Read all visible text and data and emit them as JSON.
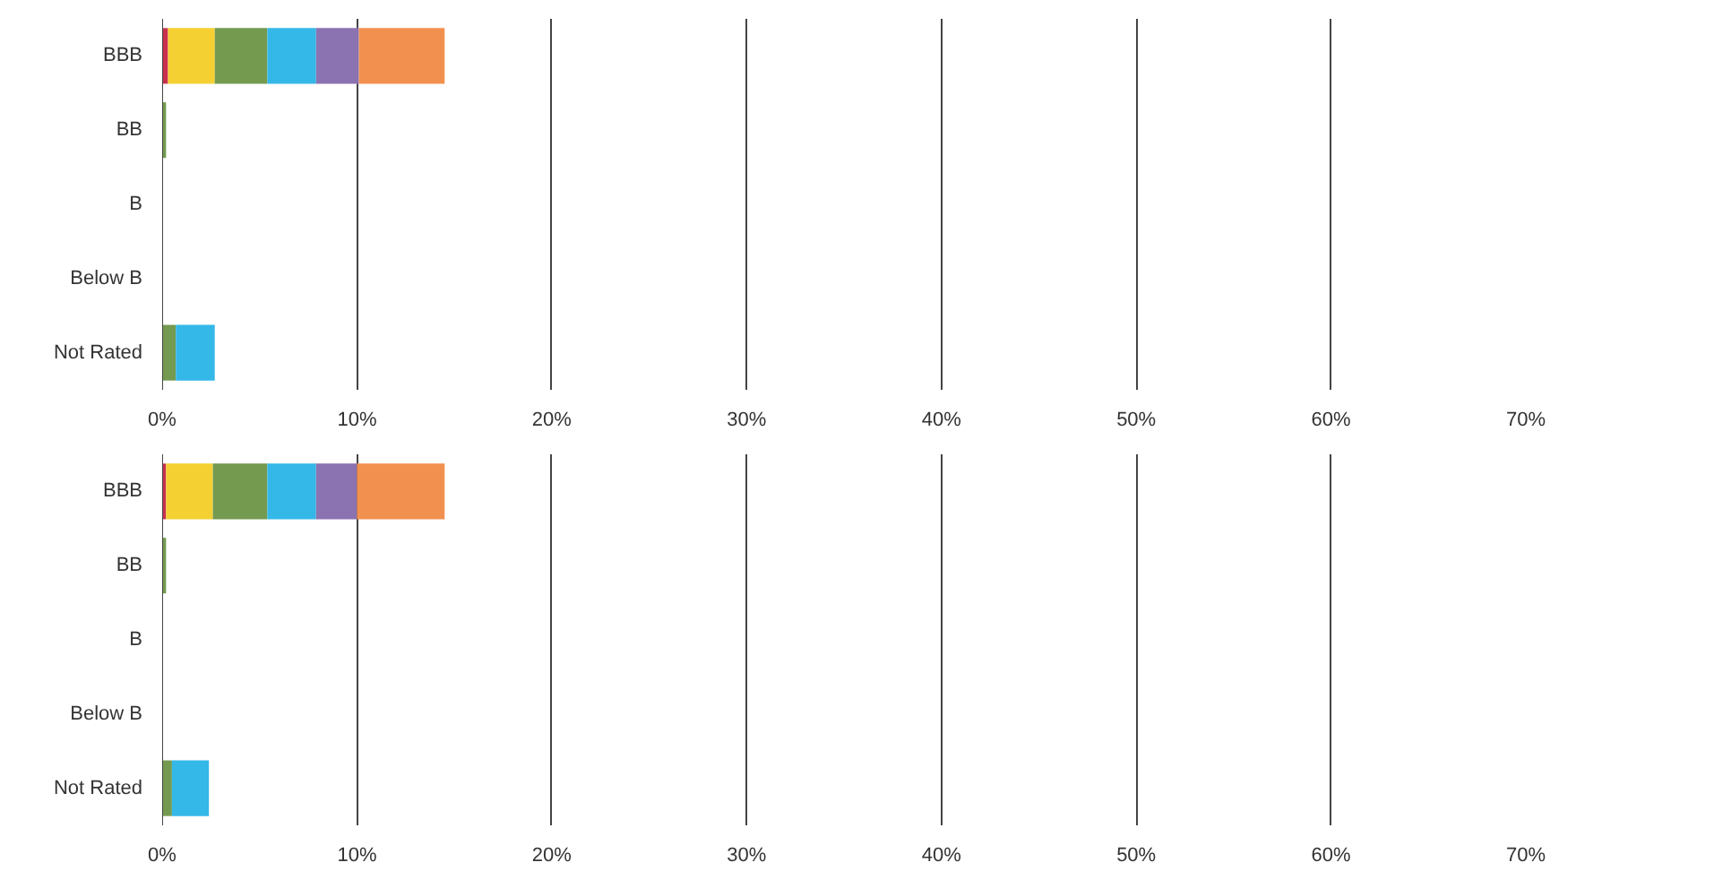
{
  "chart_data": [
    {
      "type": "bar",
      "orientation": "horizontal",
      "stacked": true,
      "categories": [
        "BBB",
        "BB",
        "B",
        "Below B",
        "Not Rated"
      ],
      "xlim": [
        0,
        70
      ],
      "xticks": [
        {
          "value": 0,
          "label": "0%"
        },
        {
          "value": 10,
          "label": "10%"
        },
        {
          "value": 20,
          "label": "20%"
        },
        {
          "value": 30,
          "label": "30%"
        },
        {
          "value": 40,
          "label": "40%"
        },
        {
          "value": 50,
          "label": "50%"
        },
        {
          "value": 60,
          "label": "60%"
        },
        {
          "value": 70,
          "label": "70%"
        }
      ],
      "grid": "x",
      "series": [
        {
          "color": "#c8304e",
          "values": [
            0.3,
            0,
            0,
            0,
            0
          ]
        },
        {
          "color": "#f5d033",
          "values": [
            2.4,
            0,
            0,
            0,
            0
          ]
        },
        {
          "color": "#749a50",
          "values": [
            2.7,
            0.2,
            0,
            0,
            0.7
          ]
        },
        {
          "color": "#34b8e8",
          "values": [
            2.5,
            0,
            0,
            0,
            2.0
          ]
        },
        {
          "color": "#8b72b0",
          "values": [
            2.2,
            0,
            0,
            0,
            0
          ]
        },
        {
          "color": "#f2914f",
          "values": [
            4.4,
            0,
            0,
            0,
            0
          ]
        }
      ]
    },
    {
      "type": "bar",
      "orientation": "horizontal",
      "stacked": true,
      "categories": [
        "BBB",
        "BB",
        "B",
        "Below B",
        "Not Rated"
      ],
      "xlim": [
        0,
        70
      ],
      "xticks": [
        {
          "value": 0,
          "label": "0%"
        },
        {
          "value": 10,
          "label": "10%"
        },
        {
          "value": 20,
          "label": "20%"
        },
        {
          "value": 30,
          "label": "30%"
        },
        {
          "value": 40,
          "label": "40%"
        },
        {
          "value": 50,
          "label": "50%"
        },
        {
          "value": 60,
          "label": "60%"
        },
        {
          "value": 70,
          "label": "70%"
        }
      ],
      "grid": "x",
      "series": [
        {
          "color": "#c8304e",
          "values": [
            0.2,
            0,
            0,
            0,
            0
          ]
        },
        {
          "color": "#f5d033",
          "values": [
            2.4,
            0,
            0,
            0,
            0
          ]
        },
        {
          "color": "#749a50",
          "values": [
            2.8,
            0.2,
            0,
            0,
            0.5
          ]
        },
        {
          "color": "#34b8e8",
          "values": [
            2.5,
            0,
            0,
            0,
            1.9
          ]
        },
        {
          "color": "#8b72b0",
          "values": [
            2.1,
            0,
            0,
            0,
            0
          ]
        },
        {
          "color": "#f2914f",
          "values": [
            4.5,
            0,
            0,
            0,
            0
          ]
        }
      ]
    }
  ]
}
